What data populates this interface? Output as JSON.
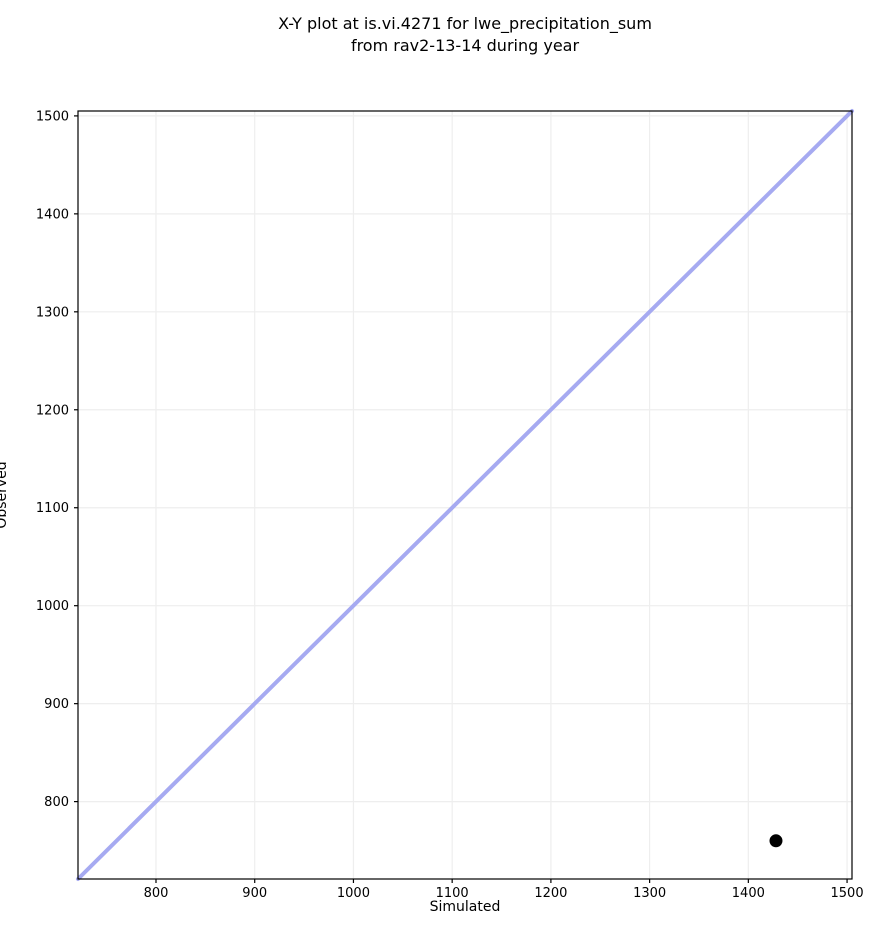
{
  "chart_data": {
    "type": "scatter",
    "title": "X-Y plot at is.vi.4271 for lwe_precipitation_sum from rav2-13-14 during year",
    "title_line1": "X-Y plot at is.vi.4271 for lwe_precipitation_sum",
    "title_line2": "from rav2-13-14 during year",
    "xlabel": "Simulated",
    "ylabel": "Observed",
    "xlim": [
      721,
      1505
    ],
    "ylim": [
      721,
      1505
    ],
    "xticks": [
      800,
      900,
      1000,
      1100,
      1200,
      1300,
      1400,
      1500
    ],
    "yticks": [
      800,
      900,
      1000,
      1100,
      1200,
      1300,
      1400,
      1500
    ],
    "grid": true,
    "legend": "none",
    "points": [
      {
        "x": 1428,
        "y": 760
      }
    ],
    "identity_line": {
      "from": [
        721,
        721
      ],
      "to": [
        1505,
        1505
      ]
    },
    "colors": {
      "line": "#a6aaf1",
      "point": "#000000",
      "grid": "#eeeeee",
      "spine": "#000000",
      "text": "#000000",
      "background": "#ffffff"
    }
  }
}
